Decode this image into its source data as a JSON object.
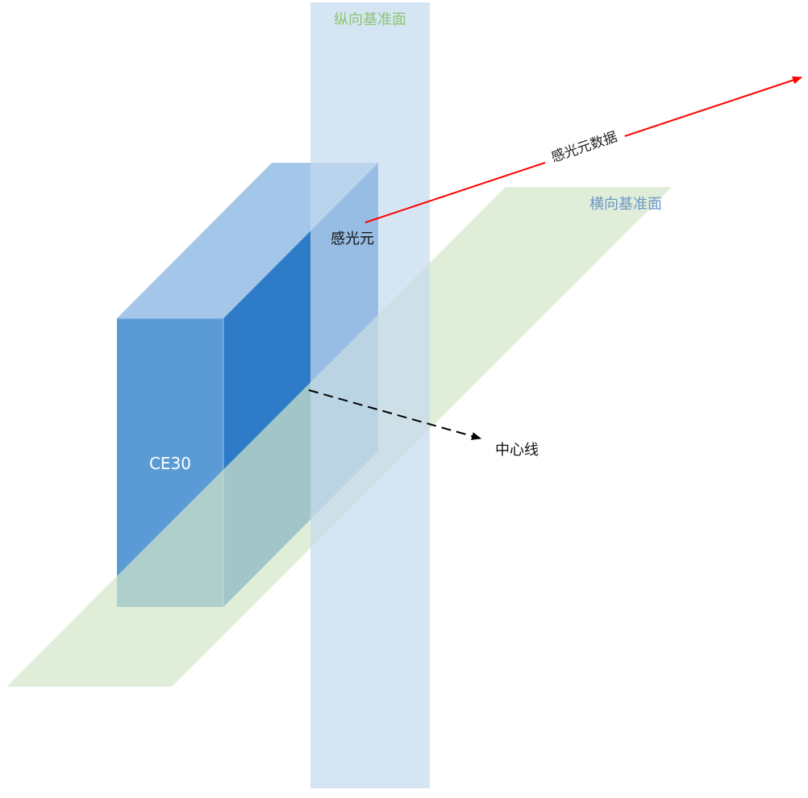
{
  "labels": {
    "vertical_plane": "纵向基准面",
    "horizontal_plane": "横向基准面",
    "sensor": "感光元",
    "sensor_data": "感光元数据",
    "center_line": "中心线",
    "device": "CE30"
  },
  "colors": {
    "vertical_plane_fill": "#cfe0f3",
    "horizontal_plane_fill": "#dcebd3",
    "box_front": "#5b9bd5",
    "box_side": "#2e7bc8",
    "box_top": "#a4c6e8",
    "vertical_plane_label": "#8dc572",
    "horizontal_plane_label": "#6d97c9",
    "data_arrow": "#ff0000",
    "center_arrow": "#000000",
    "device_label": "#ffffff"
  }
}
